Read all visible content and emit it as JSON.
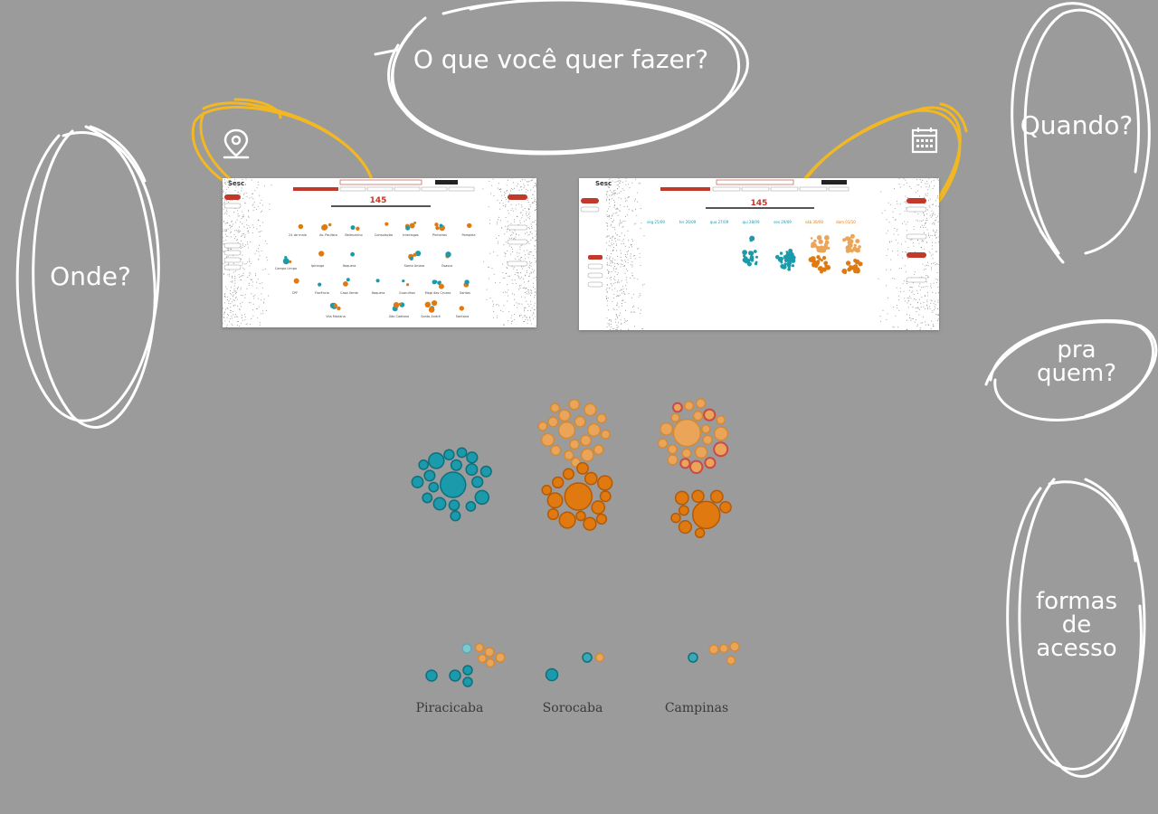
{
  "labels": {
    "what": "O que você quer fazer?",
    "where": "Onde?",
    "when": "Quando?",
    "for_whom_1": "pra",
    "for_whom_2": "quem?",
    "access_1": "formas",
    "access_2": "de",
    "access_3": "acesso"
  },
  "icons": {
    "location": "map-pin-icon",
    "calendar": "calendar-icon"
  },
  "thumbnail_left": {
    "count": "145",
    "places": [
      "24 de maio",
      "Av. Paulista",
      "Belenzinho",
      "Consolação",
      "Interlagos",
      "Pinheiros",
      "Pompeia",
      "Vila Mariana",
      "Campo Limpo",
      "Ipiranga",
      "Itaquera",
      "Santana",
      "Santo Amaro",
      "Osasco",
      "CPF",
      "Florêncio",
      "Casa Verde",
      "Itaquera",
      "Guarulhos",
      "Mogi das Cruzes",
      "Santos",
      "São Caetano",
      "Santo André"
    ]
  },
  "thumbnail_right": {
    "count": "145",
    "days": [
      "seg 25/09",
      "ter 26/09",
      "qua 27/09",
      "qui 28/09",
      "sex 29/09",
      "sáb 30/09",
      "dom 01/10"
    ]
  },
  "cities": [
    "Piracicaba",
    "Sorocaba",
    "Campinas"
  ],
  "colors": {
    "background": "#9b9b9b",
    "teal": "#1a9aab",
    "teal_stroke": "#0e6f7d",
    "orange_dark": "#e07a10",
    "orange_dark_stroke": "#b35a05",
    "orange_light": "#eba55a",
    "orange_light_stroke": "#d08a38",
    "circle_accent": "#c84a4a",
    "scribble_yellow": "#f2b824"
  }
}
